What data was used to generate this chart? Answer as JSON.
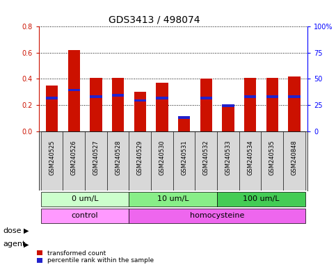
{
  "title": "GDS3413 / 498074",
  "samples": [
    "GSM240525",
    "GSM240526",
    "GSM240527",
    "GSM240528",
    "GSM240529",
    "GSM240530",
    "GSM240531",
    "GSM240532",
    "GSM240533",
    "GSM240534",
    "GSM240535",
    "GSM240848"
  ],
  "red_values": [
    0.35,
    0.62,
    0.41,
    0.41,
    0.3,
    0.37,
    0.1,
    0.4,
    0.19,
    0.41,
    0.41,
    0.42
  ],
  "blue_values_left_scale": [
    0.245,
    0.305,
    0.255,
    0.265,
    0.225,
    0.245,
    0.095,
    0.245,
    0.185,
    0.255,
    0.255,
    0.255
  ],
  "blue_bar_height": 0.02,
  "ylim_left": [
    0,
    0.8
  ],
  "ylim_right": [
    0,
    100
  ],
  "yticks_left": [
    0,
    0.2,
    0.4,
    0.6,
    0.8
  ],
  "yticks_right": [
    0,
    25,
    50,
    75,
    100
  ],
  "ytick_labels_right": [
    "0",
    "25",
    "50",
    "75",
    "100%"
  ],
  "dose_groups": [
    {
      "label": "0 um/L",
      "start": 0,
      "end": 4,
      "color": "#ccffcc"
    },
    {
      "label": "10 um/L",
      "start": 4,
      "end": 8,
      "color": "#88ee88"
    },
    {
      "label": "100 um/L",
      "start": 8,
      "end": 12,
      "color": "#44cc55"
    }
  ],
  "agent_groups": [
    {
      "label": "control",
      "start": 0,
      "end": 4,
      "color": "#ff99ff"
    },
    {
      "label": "homocysteine",
      "start": 4,
      "end": 12,
      "color": "#ee66ee"
    }
  ],
  "dose_label": "dose",
  "agent_label": "agent",
  "legend_red": "transformed count",
  "legend_blue": "percentile rank within the sample",
  "red_color": "#cc1100",
  "blue_color": "#2222cc",
  "bar_width": 0.55,
  "grid_color": "black",
  "bg_color": "#ffffff",
  "title_fontsize": 10,
  "tick_fontsize": 7,
  "label_fontsize": 8,
  "annotation_fontsize": 8
}
